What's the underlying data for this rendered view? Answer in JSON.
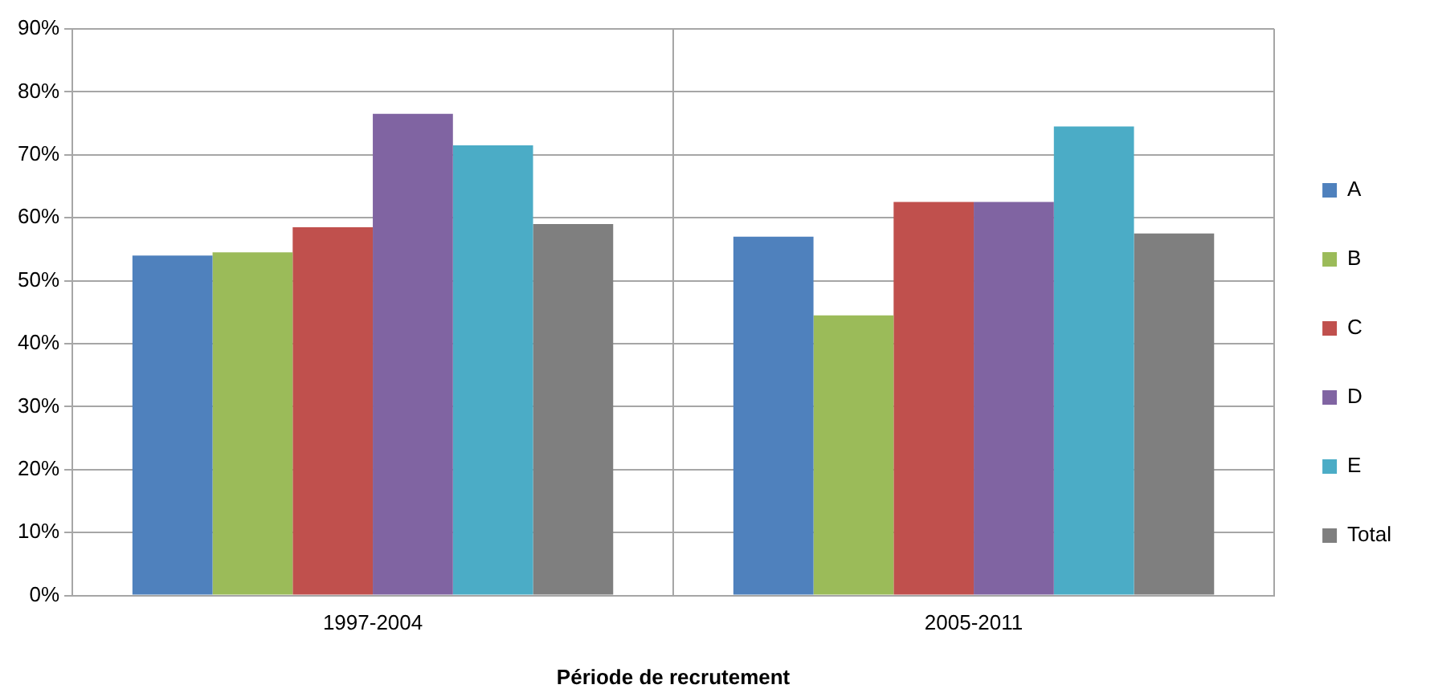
{
  "chart_data": {
    "type": "bar",
    "xlabel": "Période de recrutement",
    "categories": [
      "1997-2004",
      "2005-2011"
    ],
    "series": [
      {
        "name": "A",
        "color": "#4f81bd",
        "values": [
          54,
          57
        ]
      },
      {
        "name": "B",
        "color": "#9bbb59",
        "values": [
          54.5,
          44.5
        ]
      },
      {
        "name": "C",
        "color": "#c0504d",
        "values": [
          58.5,
          62.5
        ]
      },
      {
        "name": "D",
        "color": "#8064a2",
        "values": [
          76.5,
          62.5
        ]
      },
      {
        "name": "E",
        "color": "#4bacc6",
        "values": [
          71.5,
          74.5
        ]
      },
      {
        "name": "Total",
        "color": "#7f7f7f",
        "values": [
          59,
          57.5
        ]
      }
    ],
    "ylim": [
      0,
      90
    ],
    "yticks": [
      {
        "value": 0,
        "label": "0%"
      },
      {
        "value": 10,
        "label": "10%"
      },
      {
        "value": 20,
        "label": "20%"
      },
      {
        "value": 30,
        "label": "30%"
      },
      {
        "value": 40,
        "label": "40%"
      },
      {
        "value": 50,
        "label": "50%"
      },
      {
        "value": 60,
        "label": "60%"
      },
      {
        "value": 70,
        "label": "70%"
      },
      {
        "value": 80,
        "label": "80%"
      },
      {
        "value": 90,
        "label": "90%"
      }
    ],
    "grid": true,
    "legend": "right"
  }
}
